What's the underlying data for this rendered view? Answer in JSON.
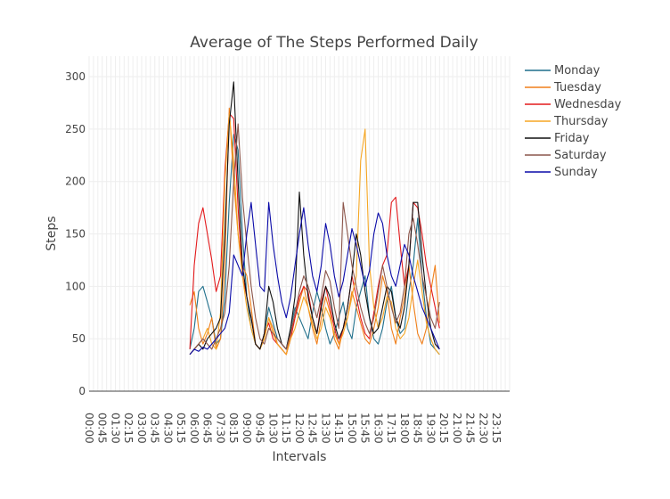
{
  "chart_data": {
    "type": "line",
    "title": "Average of The Steps Performed Daily",
    "xlabel": "Intervals",
    "ylabel": "Steps",
    "ylim": [
      0,
      310
    ],
    "yticks": [
      0,
      50,
      100,
      150,
      200,
      250,
      300
    ],
    "grid": true,
    "legend_position": "top-right",
    "x_tick_labels": [
      "00:00",
      "00:45",
      "01:30",
      "02:15",
      "03:00",
      "03:45",
      "04:30",
      "05:15",
      "06:00",
      "06:45",
      "07:30",
      "08:15",
      "09:00",
      "09:45",
      "10:30",
      "11:15",
      "12:00",
      "12:45",
      "13:30",
      "14:15",
      "15:00",
      "15:45",
      "16:30",
      "17:15",
      "18:00",
      "18:45",
      "19:30",
      "20:15",
      "21:00",
      "21:45",
      "22:30",
      "23:15"
    ],
    "x": [
      "05:45",
      "06:00",
      "06:15",
      "06:30",
      "06:45",
      "07:00",
      "07:15",
      "07:30",
      "07:45",
      "08:00",
      "08:15",
      "08:30",
      "08:45",
      "09:00",
      "09:15",
      "09:30",
      "09:45",
      "10:00",
      "10:15",
      "10:30",
      "10:45",
      "11:00",
      "11:15",
      "11:30",
      "11:45",
      "12:00",
      "12:15",
      "12:30",
      "12:45",
      "13:00",
      "13:15",
      "13:30",
      "13:45",
      "14:00",
      "14:15",
      "14:30",
      "14:45",
      "15:00",
      "15:15",
      "15:30",
      "15:45",
      "16:00",
      "16:15",
      "16:30",
      "16:45",
      "17:00",
      "17:15",
      "17:30",
      "17:45",
      "18:00",
      "18:15",
      "18:30",
      "18:45",
      "19:00",
      "19:15",
      "19:30",
      "19:45",
      "20:00"
    ],
    "series": [
      {
        "name": "Monday",
        "color": "#1f6f8b",
        "values": [
          40,
          60,
          95,
          100,
          85,
          70,
          45,
          50,
          90,
          180,
          245,
          230,
          150,
          90,
          60,
          45,
          40,
          55,
          80,
          65,
          50,
          45,
          40,
          60,
          80,
          70,
          60,
          50,
          75,
          95,
          80,
          60,
          45,
          55,
          70,
          85,
          60,
          50,
          80,
          95,
          110,
          70,
          50,
          45,
          60,
          85,
          100,
          70,
          55,
          60,
          95,
          120,
          165,
          110,
          70,
          45,
          40,
          35
        ]
      },
      {
        "name": "Tuesday",
        "color": "#f07f1a",
        "values": [
          82,
          95,
          60,
          45,
          55,
          70,
          40,
          50,
          120,
          270,
          200,
          150,
          120,
          110,
          80,
          45,
          40,
          50,
          70,
          60,
          45,
          40,
          35,
          55,
          70,
          85,
          100,
          80,
          60,
          45,
          70,
          90,
          75,
          50,
          40,
          60,
          70,
          95,
          80,
          65,
          50,
          45,
          60,
          80,
          110,
          95,
          60,
          45,
          70,
          90,
          120,
          85,
          55,
          45,
          60,
          95,
          120,
          65
        ]
      },
      {
        "name": "Wednesday",
        "color": "#e31a1c",
        "values": [
          40,
          120,
          160,
          175,
          150,
          125,
          95,
          110,
          210,
          265,
          260,
          175,
          110,
          90,
          70,
          45,
          40,
          55,
          65,
          50,
          45,
          40,
          35,
          50,
          70,
          90,
          100,
          95,
          70,
          55,
          85,
          100,
          80,
          60,
          45,
          60,
          80,
          110,
          90,
          70,
          55,
          50,
          75,
          100,
          120,
          130,
          180,
          185,
          140,
          100,
          120,
          180,
          175,
          150,
          120,
          100,
          80,
          60
        ]
      },
      {
        "name": "Thursday",
        "color": "#f5a623",
        "values": [
          35,
          40,
          45,
          50,
          60,
          45,
          40,
          75,
          200,
          265,
          220,
          150,
          110,
          80,
          60,
          45,
          40,
          50,
          70,
          55,
          45,
          40,
          35,
          50,
          60,
          75,
          90,
          80,
          65,
          50,
          60,
          80,
          70,
          55,
          45,
          55,
          70,
          90,
          110,
          220,
          250,
          120,
          80,
          60,
          70,
          90,
          85,
          60,
          50,
          55,
          70,
          100,
          125,
          95,
          65,
          50,
          40,
          35
        ]
      },
      {
        "name": "Friday",
        "color": "#111111",
        "values": [
          35,
          40,
          45,
          40,
          50,
          55,
          60,
          70,
          150,
          255,
          295,
          200,
          120,
          90,
          70,
          45,
          40,
          55,
          100,
          85,
          60,
          45,
          40,
          60,
          90,
          190,
          130,
          90,
          70,
          55,
          80,
          100,
          90,
          65,
          50,
          60,
          80,
          110,
          150,
          130,
          95,
          70,
          55,
          60,
          80,
          100,
          95,
          70,
          60,
          80,
          120,
          180,
          180,
          130,
          90,
          60,
          45,
          40
        ]
      },
      {
        "name": "Saturday",
        "color": "#8c564b",
        "values": [
          35,
          40,
          45,
          50,
          45,
          40,
          50,
          60,
          75,
          120,
          200,
          255,
          185,
          140,
          100,
          70,
          50,
          45,
          60,
          55,
          50,
          45,
          40,
          55,
          75,
          95,
          110,
          100,
          85,
          70,
          90,
          115,
          105,
          80,
          60,
          180,
          150,
          120,
          100,
          80,
          65,
          55,
          70,
          95,
          120,
          100,
          80,
          65,
          75,
          100,
          150,
          165,
          140,
          110,
          90,
          70,
          60,
          85
        ]
      },
      {
        "name": "Sunday",
        "color": "#0a0aa8",
        "values": [
          35,
          40,
          38,
          42,
          40,
          45,
          50,
          55,
          60,
          75,
          130,
          120,
          110,
          150,
          180,
          140,
          100,
          95,
          180,
          140,
          110,
          85,
          70,
          90,
          120,
          150,
          175,
          140,
          110,
          95,
          120,
          160,
          140,
          110,
          90,
          105,
          130,
          155,
          140,
          120,
          100,
          115,
          150,
          170,
          160,
          130,
          110,
          100,
          120,
          140,
          130,
          110,
          95,
          80,
          70,
          60,
          50,
          40
        ]
      }
    ]
  }
}
